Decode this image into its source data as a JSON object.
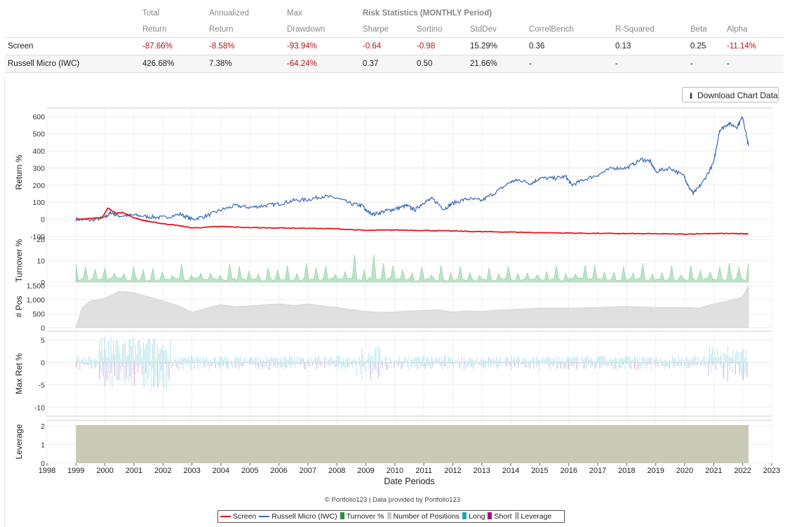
{
  "stats_table": {
    "header_top": [
      "",
      "Total",
      "Annualized",
      "Max",
      "Risk Statistics (MONTHLY Period)",
      "",
      "",
      "",
      "",
      "",
      ""
    ],
    "header_bottom": [
      "",
      "Return",
      "Return",
      "Drawdown",
      "Sharpe",
      "Sortino",
      "StdDev",
      "CorrelBench",
      "R-Squared",
      "Beta",
      "Alpha"
    ],
    "rows": [
      {
        "name": "Screen",
        "values": [
          "-87.66%",
          "-8.58%",
          "-93.94%",
          "-0.64",
          "-0.98",
          "15.29%",
          "0.36",
          "0.13",
          "0.25",
          "-11.14%"
        ]
      },
      {
        "name": "Russell Micro (IWC)",
        "values": [
          "426.68%",
          "7.38%",
          "-64.24%",
          "0.37",
          "0.50",
          "21.66%",
          "-",
          "-",
          "-",
          "-"
        ]
      }
    ]
  },
  "download_button": {
    "label": "Download Chart Data",
    "icon": "download-icon"
  },
  "colors": {
    "screen": "#e8141b",
    "benchmark": "#3a66b8",
    "turnover": "#8fd0a0",
    "positions": "#e0e0e0",
    "long": "#55c0cc",
    "short": "#aa22aa",
    "leverage": "#c9c9b5",
    "negative_text": "#b0141e"
  },
  "chart_data": {
    "type": "line",
    "xlabel": "Date Periods",
    "x_ticks": [
      "1998",
      "1999",
      "2000",
      "2001",
      "2002",
      "2003",
      "2004",
      "2005",
      "2006",
      "2007",
      "2008",
      "2009",
      "2010",
      "2011",
      "2012",
      "2013",
      "2014",
      "2015",
      "2016",
      "2017",
      "2018",
      "2019",
      "2020",
      "2021",
      "2022",
      "2023"
    ],
    "panels": [
      {
        "name": "return",
        "ylabel": "Return %",
        "ylim": [
          -100,
          650
        ],
        "y_ticks": [
          "600",
          "500",
          "400",
          "300",
          "200",
          "100",
          "0",
          "-100"
        ],
        "series": [
          {
            "name": "Russell Micro (IWC)",
            "x": [
              1999.0,
              1999.5,
              2000.0,
              2000.2,
              2000.5,
              2001.0,
              2001.5,
              2002.0,
              2002.6,
              2003.0,
              2003.5,
              2004.0,
              2004.5,
              2005.0,
              2005.5,
              2006.0,
              2006.5,
              2007.0,
              2007.5,
              2008.0,
              2008.5,
              2008.9,
              2009.0,
              2009.3,
              2009.7,
              2010.0,
              2010.4,
              2010.7,
              2011.0,
              2011.3,
              2011.7,
              2012.0,
              2012.5,
              2013.0,
              2013.5,
              2014.0,
              2014.3,
              2014.7,
              2015.0,
              2015.5,
              2015.9,
              2016.1,
              2016.5,
              2017.0,
              2017.5,
              2018.0,
              2018.5,
              2018.8,
              2019.0,
              2019.5,
              2020.0,
              2020.1,
              2020.3,
              2020.6,
              2021.0,
              2021.2,
              2021.5,
              2021.8,
              2022.0,
              2022.2
            ],
            "values": [
              0,
              -5,
              10,
              40,
              20,
              25,
              15,
              10,
              30,
              0,
              20,
              55,
              80,
              70,
              80,
              90,
              110,
              115,
              135,
              125,
              90,
              80,
              50,
              30,
              50,
              60,
              80,
              55,
              100,
              120,
              60,
              95,
              120,
              110,
              160,
              220,
              230,
              210,
              240,
              240,
              250,
              200,
              230,
              260,
              300,
              300,
              350,
              340,
              280,
              300,
              250,
              200,
              150,
              210,
              330,
              520,
              560,
              540,
              600,
              430
            ]
          },
          {
            "name": "Screen",
            "x": [
              1999.0,
              1999.5,
              1999.9,
              2000.1,
              2000.4,
              2000.6,
              2001.0,
              2001.3,
              2001.6,
              2002.0,
              2002.5,
              2003.0,
              2004.0,
              2005.0,
              2006.0,
              2007.0,
              2008.0,
              2009.0,
              2010.0,
              2011.0,
              2012.0,
              2013.0,
              2014.0,
              2015.0,
              2016.0,
              2017.0,
              2018.0,
              2019.0,
              2020.0,
              2021.0,
              2022.0,
              2022.2
            ],
            "values": [
              0,
              5,
              10,
              65,
              35,
              40,
              10,
              -5,
              -15,
              -25,
              -35,
              -50,
              -42,
              -48,
              -50,
              -52,
              -55,
              -65,
              -62,
              -65,
              -68,
              -72,
              -74,
              -78,
              -80,
              -82,
              -83,
              -84,
              -86,
              -82,
              -84,
              -85
            ]
          }
        ]
      },
      {
        "name": "turnover",
        "ylabel": "Turnover %",
        "ylim": [
          0,
          20
        ],
        "y_ticks": [
          "20",
          "10",
          "0"
        ],
        "series": [
          {
            "name": "Turnover %",
            "typical_peak": 8,
            "max": 14
          }
        ]
      },
      {
        "name": "positions",
        "ylabel": "# Pos",
        "ylim": [
          0,
          1500
        ],
        "y_ticks": [
          "1,500",
          "1,000",
          "500",
          "0"
        ],
        "series": [
          {
            "name": "Number of Positions",
            "x": [
              1999.0,
              1999.2,
              1999.5,
              2000.0,
              2000.5,
              2001.0,
              2001.5,
              2002.0,
              2002.5,
              2003.0,
              2003.5,
              2004.0,
              2004.5,
              2005.0,
              2005.5,
              2006.0,
              2006.5,
              2007.0,
              2007.5,
              2008.0,
              2008.5,
              2009.0,
              2009.5,
              2010.0,
              2010.5,
              2011.0,
              2011.5,
              2012.0,
              2012.5,
              2013.0,
              2013.5,
              2014.0,
              2015.0,
              2016.0,
              2017.0,
              2018.0,
              2019.0,
              2020.0,
              2020.5,
              2021.0,
              2021.5,
              2022.0,
              2022.2
            ],
            "values": [
              0,
              700,
              950,
              1050,
              1300,
              1250,
              1100,
              950,
              800,
              550,
              700,
              820,
              750,
              780,
              820,
              850,
              800,
              850,
              780,
              720,
              650,
              580,
              550,
              560,
              600,
              620,
              640,
              560,
              600,
              580,
              620,
              650,
              700,
              700,
              720,
              760,
              720,
              720,
              700,
              850,
              950,
              1100,
              1500
            ]
          }
        ]
      },
      {
        "name": "max_return",
        "ylabel": "Max Ret %",
        "ylim": [
          -12,
          7
        ],
        "y_ticks": [
          "5",
          "0",
          "-5",
          "-10"
        ],
        "series": [
          {
            "name": "Long"
          },
          {
            "name": "Short"
          }
        ]
      },
      {
        "name": "leverage",
        "ylabel": "Leverage",
        "ylim": [
          0,
          2.3
        ],
        "y_ticks": [
          "2",
          "1",
          "0"
        ],
        "series": [
          {
            "name": "Leverage",
            "value": 2
          }
        ]
      }
    ],
    "x_range": [
      1998,
      2023
    ],
    "grid": true,
    "legend_placement": "bottom-center"
  },
  "credit": "© Portfolio123 | Data provided by Portfolio123",
  "legend": [
    {
      "label": "Screen",
      "kind": "line",
      "color": "#e8141b"
    },
    {
      "label": "Russell Micro (IWC)",
      "kind": "line",
      "color": "#3a66b8"
    },
    {
      "label": "Turnover %",
      "kind": "box",
      "color": "#2e8b46"
    },
    {
      "label": "Number of Positions",
      "kind": "box",
      "color": "#cccccc"
    },
    {
      "label": "Long",
      "kind": "box",
      "color": "#1aa6b5"
    },
    {
      "label": "Short",
      "kind": "box",
      "color": "#a0108f"
    },
    {
      "label": "Leverage",
      "kind": "box",
      "color": "#b8b8b8"
    }
  ]
}
